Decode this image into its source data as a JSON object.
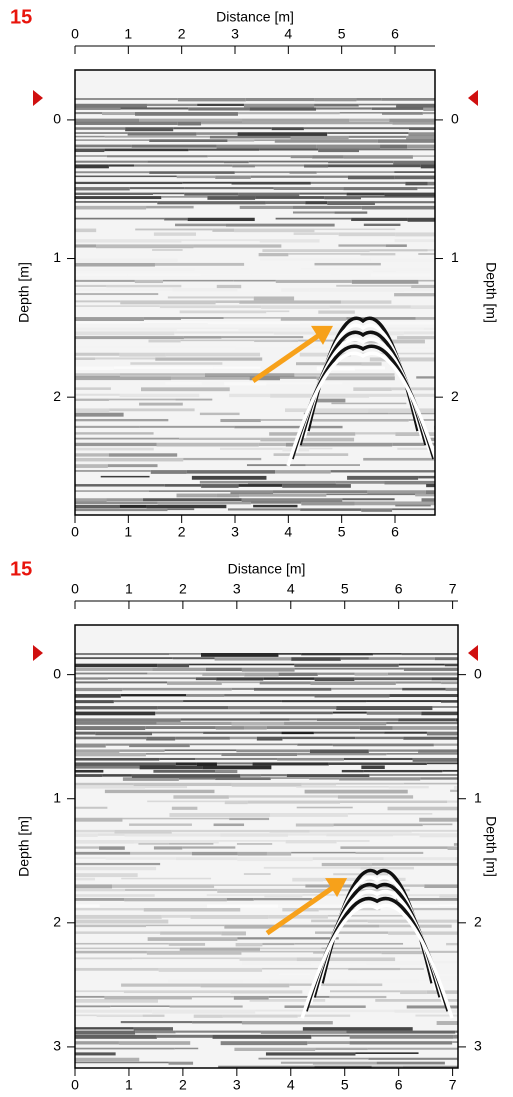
{
  "chart_data": [
    {
      "type": "radargram",
      "label": "15",
      "xlabel": "Distance [m]",
      "ylabel": "Depth [m]",
      "xlim": [
        0,
        6.75
      ],
      "xticks": [
        0,
        1,
        2,
        3,
        4,
        5,
        6
      ],
      "ylim": [
        -0.36,
        2.85
      ],
      "yticks": [
        0,
        1,
        2
      ],
      "reverse_y": true,
      "apex_x": 5.4,
      "apex_y": 1.45
    },
    {
      "type": "radargram",
      "label": "15",
      "xlabel": "Distance [m]",
      "ylabel": "Depth [m]",
      "xlim": [
        0,
        7.1
      ],
      "xticks": [
        0,
        1,
        2,
        3,
        4,
        5,
        6,
        7
      ],
      "ylim": [
        -0.4,
        3.17
      ],
      "yticks": [
        0,
        1,
        2,
        3
      ],
      "reverse_y": true,
      "apex_x": 5.6,
      "apex_y": 1.6
    }
  ]
}
